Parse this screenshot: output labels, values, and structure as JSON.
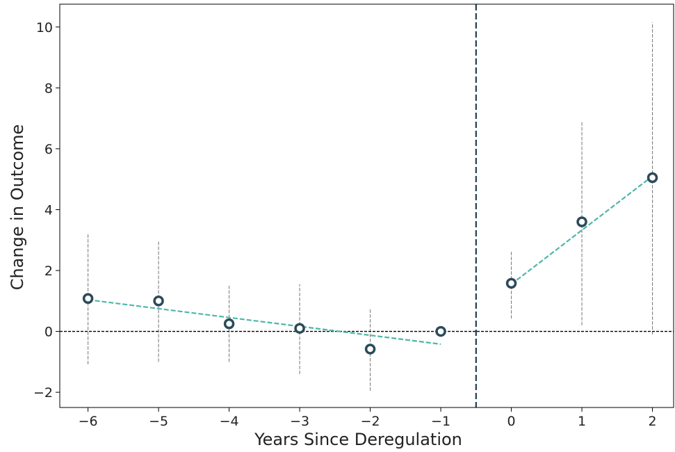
{
  "chart_data": {
    "type": "scatter",
    "title": "",
    "xlabel": "Years Since Deregulation",
    "ylabel": "Change in Outcome",
    "xlim": [
      -6.4,
      2.3
    ],
    "ylim": [
      -2.5,
      10.75
    ],
    "x_ticks": [
      -6,
      -5,
      -4,
      -3,
      -2,
      -1,
      0,
      1,
      2
    ],
    "x_tick_labels": [
      "−6",
      "−5",
      "−4",
      "−3",
      "−2",
      "−1",
      "0",
      "1",
      "2"
    ],
    "y_ticks": [
      -2,
      0,
      2,
      4,
      6,
      8,
      10
    ],
    "y_tick_labels": [
      "−2",
      "0",
      "2",
      "4",
      "6",
      "8",
      "10"
    ],
    "grid": false,
    "points": [
      {
        "x": -6,
        "y": 1.08,
        "ci": [
          -1.08,
          3.2
        ]
      },
      {
        "x": -5,
        "y": 1.0,
        "ci": [
          -1.0,
          2.95
        ]
      },
      {
        "x": -4,
        "y": 0.25,
        "ci": [
          -1.0,
          1.5
        ]
      },
      {
        "x": -3,
        "y": 0.1,
        "ci": [
          -1.4,
          1.55
        ]
      },
      {
        "x": -2,
        "y": -0.58,
        "ci": [
          -1.95,
          0.72
        ]
      },
      {
        "x": -1,
        "y": 0.0,
        "ci": null
      },
      {
        "x": 0,
        "y": 1.58,
        "ci": [
          0.42,
          2.65
        ]
      },
      {
        "x": 1,
        "y": 3.6,
        "ci": [
          0.2,
          6.9
        ]
      },
      {
        "x": 2,
        "y": 5.05,
        "ci": [
          -0.1,
          10.15
        ]
      }
    ],
    "trend_lines": [
      {
        "x": [
          -6,
          -1
        ],
        "y": [
          1.04,
          -0.42
        ]
      },
      {
        "x": [
          0,
          2
        ],
        "y": [
          1.55,
          5.1
        ]
      }
    ],
    "reference_lines": {
      "horizontal_y": 0,
      "vertical_x": -0.5
    },
    "colors": {
      "marker": "#2b4a5a",
      "trend": "#4db6a9",
      "error_bar": "#808080",
      "zero_line": "#000000",
      "event_line": "#1f3f4f"
    }
  }
}
